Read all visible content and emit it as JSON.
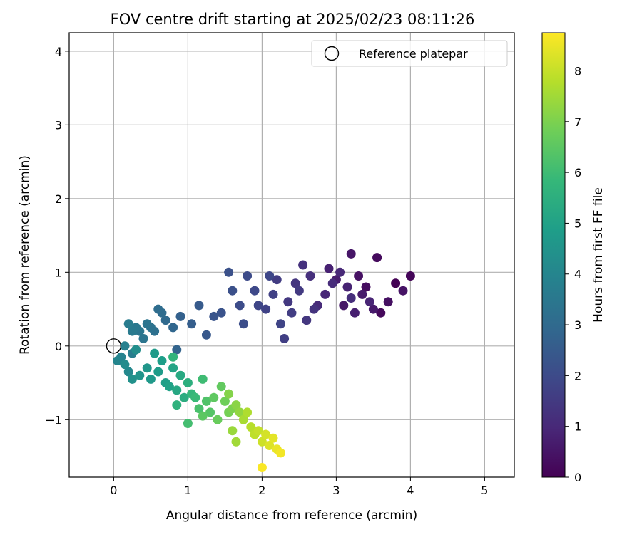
{
  "chart_data": {
    "type": "scatter",
    "title": "FOV centre drift starting at 2025/02/23 08:11:26",
    "xlabel": "Angular distance from reference (arcmin)",
    "ylabel": "Rotation from reference (arcmin)",
    "xlim": [
      -0.6,
      5.4
    ],
    "ylim": [
      -1.78,
      4.25
    ],
    "xticks": [
      "0",
      "1",
      "2",
      "3",
      "4",
      "5"
    ],
    "yticks": [
      "−1",
      "0",
      "1",
      "2",
      "3",
      "4"
    ],
    "grid": true,
    "legend": {
      "placement": "top-right",
      "entries": [
        "Reference platepar"
      ]
    },
    "reference_point": {
      "x": 0,
      "y": 0
    },
    "colorbar": {
      "label": "Hours from first FF file",
      "range": [
        0,
        8.75
      ],
      "ticks": [
        "0",
        "1",
        "2",
        "3",
        "4",
        "5",
        "6",
        "7",
        "8"
      ],
      "colormap": [
        "#440154",
        "#482878",
        "#3e4989",
        "#31688e",
        "#26828e",
        "#1f9e89",
        "#35b779",
        "#6ece58",
        "#b5de2b",
        "#fde725"
      ]
    },
    "points": [
      [
        3.8,
        0.85,
        0.0
      ],
      [
        4.0,
        0.95,
        0.1
      ],
      [
        3.6,
        0.45,
        0.2
      ],
      [
        3.55,
        1.2,
        0.25
      ],
      [
        3.4,
        0.8,
        0.3
      ],
      [
        3.7,
        0.6,
        0.35
      ],
      [
        3.3,
        0.95,
        0.4
      ],
      [
        3.9,
        0.75,
        0.45
      ],
      [
        3.2,
        1.25,
        0.5
      ],
      [
        3.1,
        0.55,
        0.55
      ],
      [
        3.5,
        0.5,
        0.6
      ],
      [
        3.35,
        0.7,
        0.65
      ],
      [
        3.0,
        0.9,
        0.7
      ],
      [
        3.25,
        0.45,
        0.75
      ],
      [
        2.9,
        1.05,
        0.8
      ],
      [
        3.15,
        0.8,
        0.85
      ],
      [
        3.45,
        0.6,
        0.9
      ],
      [
        2.85,
        0.7,
        0.95
      ],
      [
        3.05,
        1.0,
        1.0
      ],
      [
        2.75,
        0.55,
        1.05
      ],
      [
        2.95,
        0.85,
        1.1
      ],
      [
        3.2,
        0.65,
        1.15
      ],
      [
        2.65,
        0.95,
        1.2
      ],
      [
        2.55,
        1.1,
        1.25
      ],
      [
        2.7,
        0.5,
        1.3
      ],
      [
        2.45,
        0.85,
        1.35
      ],
      [
        2.6,
        0.35,
        1.4
      ],
      [
        2.35,
        0.6,
        1.45
      ],
      [
        2.5,
        0.75,
        1.5
      ],
      [
        2.2,
        0.9,
        1.55
      ],
      [
        2.4,
        0.45,
        1.6
      ],
      [
        2.3,
        0.1,
        1.65
      ],
      [
        2.15,
        0.7,
        1.7
      ],
      [
        2.05,
        0.5,
        1.75
      ],
      [
        2.25,
        0.3,
        1.8
      ],
      [
        1.95,
        0.55,
        1.85
      ],
      [
        2.1,
        0.95,
        1.9
      ],
      [
        1.9,
        0.75,
        1.95
      ],
      [
        1.8,
        0.95,
        2.0
      ],
      [
        1.7,
        0.55,
        2.05
      ],
      [
        1.75,
        0.3,
        2.1
      ],
      [
        1.6,
        0.75,
        2.15
      ],
      [
        1.55,
        1.0,
        2.2
      ],
      [
        1.45,
        0.45,
        2.25
      ],
      [
        1.35,
        0.4,
        2.3
      ],
      [
        1.25,
        0.15,
        2.4
      ],
      [
        1.15,
        0.55,
        2.5
      ],
      [
        1.05,
        0.3,
        2.6
      ],
      [
        0.9,
        0.4,
        2.7
      ],
      [
        0.85,
        -0.05,
        2.8
      ],
      [
        0.8,
        0.25,
        2.9
      ],
      [
        0.7,
        0.35,
        3.0
      ],
      [
        0.65,
        0.45,
        3.05
      ],
      [
        0.6,
        0.5,
        3.1
      ],
      [
        0.55,
        0.2,
        3.2
      ],
      [
        0.5,
        0.25,
        3.3
      ],
      [
        0.45,
        0.3,
        3.35
      ],
      [
        0.4,
        0.1,
        3.4
      ],
      [
        0.35,
        0.2,
        3.45
      ],
      [
        0.3,
        0.25,
        3.5
      ],
      [
        0.25,
        0.2,
        3.6
      ],
      [
        0.2,
        0.3,
        3.65
      ],
      [
        0.25,
        -0.1,
        3.7
      ],
      [
        0.15,
        0.0,
        3.8
      ],
      [
        0.1,
        -0.15,
        3.9
      ],
      [
        0.05,
        -0.2,
        4.0
      ],
      [
        0.2,
        -0.35,
        4.1
      ],
      [
        0.15,
        -0.25,
        4.2
      ],
      [
        0.3,
        -0.05,
        4.3
      ],
      [
        0.25,
        -0.45,
        4.4
      ],
      [
        0.35,
        -0.4,
        4.5
      ],
      [
        0.45,
        -0.3,
        4.6
      ],
      [
        0.5,
        -0.45,
        4.7
      ],
      [
        0.55,
        -0.1,
        4.75
      ],
      [
        0.6,
        -0.35,
        4.8
      ],
      [
        0.65,
        -0.2,
        4.85
      ],
      [
        0.7,
        -0.5,
        4.9
      ],
      [
        0.75,
        -0.55,
        5.0
      ],
      [
        0.8,
        -0.3,
        5.1
      ],
      [
        0.85,
        -0.6,
        5.2
      ],
      [
        0.9,
        -0.4,
        5.3
      ],
      [
        0.95,
        -0.7,
        5.4
      ],
      [
        1.0,
        -0.5,
        5.5
      ],
      [
        0.85,
        -0.8,
        5.6
      ],
      [
        0.8,
        -0.15,
        5.7
      ],
      [
        1.05,
        -0.65,
        5.8
      ],
      [
        1.1,
        -0.7,
        5.9
      ],
      [
        1.2,
        -0.45,
        6.0
      ],
      [
        1.0,
        -1.05,
        6.1
      ],
      [
        1.15,
        -0.85,
        6.2
      ],
      [
        1.25,
        -0.75,
        6.3
      ],
      [
        1.3,
        -0.9,
        6.4
      ],
      [
        1.2,
        -0.95,
        6.5
      ],
      [
        1.35,
        -0.7,
        6.55
      ],
      [
        1.45,
        -0.55,
        6.6
      ],
      [
        1.4,
        -1.0,
        6.7
      ],
      [
        1.5,
        -0.75,
        6.8
      ],
      [
        1.55,
        -0.9,
        6.9
      ],
      [
        1.6,
        -0.85,
        7.0
      ],
      [
        1.55,
        -0.65,
        7.1
      ],
      [
        1.65,
        -0.8,
        7.2
      ],
      [
        1.7,
        -0.9,
        7.3
      ],
      [
        1.6,
        -1.15,
        7.4
      ],
      [
        1.65,
        -1.3,
        7.5
      ],
      [
        1.75,
        -1.0,
        7.6
      ],
      [
        1.8,
        -0.9,
        7.7
      ],
      [
        1.85,
        -1.1,
        7.8
      ],
      [
        1.9,
        -1.2,
        7.9
      ],
      [
        1.95,
        -1.15,
        8.0
      ],
      [
        2.0,
        -1.3,
        8.1
      ],
      [
        2.05,
        -1.2,
        8.2
      ],
      [
        2.1,
        -1.35,
        8.3
      ],
      [
        2.15,
        -1.25,
        8.4
      ],
      [
        2.2,
        -1.4,
        8.5
      ],
      [
        2.25,
        -1.45,
        8.6
      ],
      [
        2.0,
        -1.65,
        8.7
      ]
    ]
  }
}
